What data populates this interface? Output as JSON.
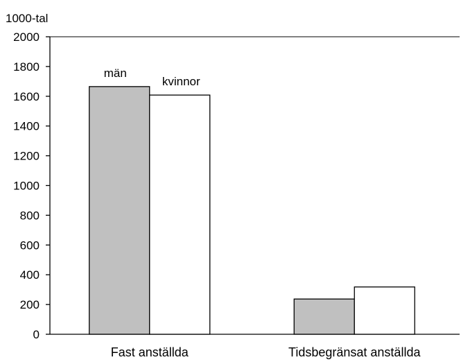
{
  "chart_data": {
    "type": "bar",
    "unit_label": "1000-tal",
    "categories": [
      "Fast anställda",
      "Tidsbegränsat anställda"
    ],
    "series": [
      {
        "name": "män",
        "values": [
          1665,
          237
        ],
        "color": "#c0c0c0"
      },
      {
        "name": "kvinnor",
        "values": [
          1608,
          318
        ],
        "color": "#ffffff"
      }
    ],
    "ylim": [
      0,
      2000
    ],
    "yticks": [
      0,
      200,
      400,
      600,
      800,
      1000,
      1200,
      1400,
      1600,
      1800,
      2000
    ],
    "grid": false,
    "legend": "inline labels above first category bars"
  }
}
